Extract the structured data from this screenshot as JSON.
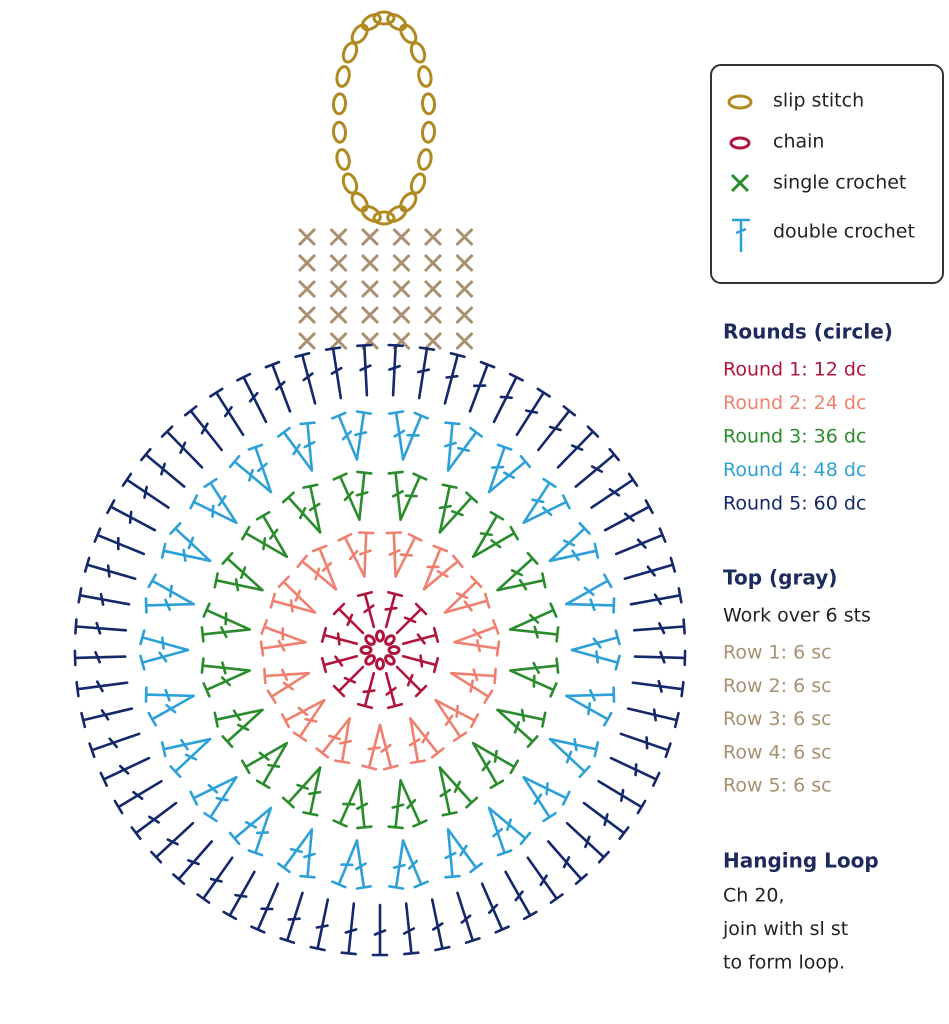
{
  "legend": [
    {
      "label": "slip stitch"
    },
    {
      "label": "chain"
    },
    {
      "label": "single crochet"
    },
    {
      "label": "double crochet"
    }
  ],
  "rounds": {
    "title": "Rounds (circle)",
    "items": [
      "Round 1: 12 dc",
      "Round 2: 24 dc",
      "Round 3: 36 dc",
      "Round 4: 48 dc",
      "Round 5: 60 dc"
    ]
  },
  "top": {
    "title": "Top (gray)",
    "note": "Work over 6 sts",
    "rows": [
      "Row 1: 6 sc",
      "Row 2: 6 sc",
      "Row 3: 6 sc",
      "Row 4: 6 sc",
      "Row 5: 6 sc"
    ]
  },
  "hanging_loop": {
    "title": "Hanging Loop",
    "lines": [
      "Ch 20,",
      "join with sl st",
      "to form loop."
    ]
  }
}
